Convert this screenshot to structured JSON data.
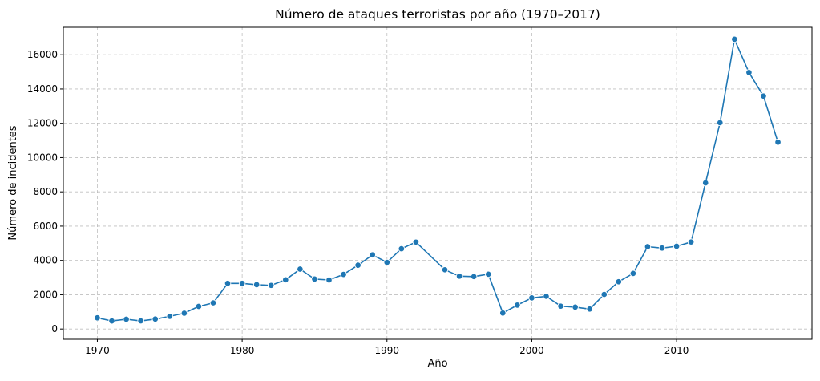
{
  "chart_data": {
    "type": "line",
    "title": "Número de ataques terroristas por año (1970–2017)",
    "xlabel": "Año",
    "ylabel": "Número de incidentes",
    "xlim": [
      1967.65,
      2019.35
    ],
    "ylim": [
      -600,
      17600
    ],
    "xticks": [
      1970,
      1980,
      1990,
      2000,
      2010
    ],
    "yticks": [
      0,
      2000,
      4000,
      6000,
      8000,
      10000,
      12000,
      14000,
      16000
    ],
    "grid": true,
    "color": "#1f77b4",
    "marker": "circle",
    "x": [
      1970,
      1971,
      1972,
      1973,
      1974,
      1975,
      1976,
      1977,
      1978,
      1979,
      1980,
      1981,
      1982,
      1983,
      1984,
      1985,
      1986,
      1987,
      1988,
      1989,
      1990,
      1991,
      1992,
      1994,
      1995,
      1996,
      1997,
      1998,
      1999,
      2000,
      2001,
      2002,
      2003,
      2004,
      2005,
      2006,
      2007,
      2008,
      2009,
      2010,
      2011,
      2012,
      2013,
      2014,
      2015,
      2016,
      2017
    ],
    "y": [
      651,
      471,
      568,
      473,
      581,
      740,
      923,
      1319,
      1526,
      2662,
      2662,
      2586,
      2544,
      2870,
      3495,
      2915,
      2860,
      3183,
      3721,
      4324,
      3887,
      4683,
      5071,
      3456,
      3081,
      3058,
      3197,
      934,
      1395,
      1814,
      1906,
      1333,
      1278,
      1166,
      2017,
      2758,
      3242,
      4805,
      4721,
      4826,
      5076,
      8522,
      12036,
      16903,
      14965,
      13587,
      10900
    ]
  }
}
